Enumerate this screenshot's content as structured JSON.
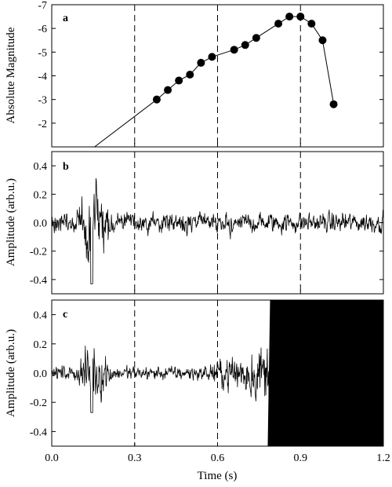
{
  "chart_data": [
    {
      "panel": "a",
      "type": "scatter",
      "ylabel": "Absolute Magnitude",
      "ylim": [
        -1,
        -7
      ],
      "y_inverted": true,
      "yticks": [
        "-2",
        "-3",
        "-4",
        "-5",
        "-6",
        "-7"
      ],
      "line_start": {
        "x": 0.155,
        "y": -1.0
      },
      "points": [
        {
          "x": 0.38,
          "y": -3.0
        },
        {
          "x": 0.42,
          "y": -3.4
        },
        {
          "x": 0.46,
          "y": -3.8
        },
        {
          "x": 0.5,
          "y": -4.05
        },
        {
          "x": 0.54,
          "y": -4.55
        },
        {
          "x": 0.58,
          "y": -4.8
        },
        {
          "x": 0.66,
          "y": -5.1
        },
        {
          "x": 0.7,
          "y": -5.3
        },
        {
          "x": 0.74,
          "y": -5.6
        },
        {
          "x": 0.82,
          "y": -6.2
        },
        {
          "x": 0.86,
          "y": -6.5
        },
        {
          "x": 0.9,
          "y": -6.5
        },
        {
          "x": 0.94,
          "y": -6.2
        },
        {
          "x": 0.98,
          "y": -5.5
        },
        {
          "x": 1.02,
          "y": -2.8
        }
      ]
    },
    {
      "panel": "b",
      "type": "line",
      "ylabel": "Amplitude (arb.u.)",
      "ylim": [
        -0.5,
        0.5
      ],
      "yticks": [
        "-0.4",
        "-0.2",
        "0.0",
        "0.2",
        "0.4"
      ],
      "waveform": {
        "background_amplitude": 0.09,
        "burst": {
          "start": 0.09,
          "end": 0.22,
          "peak_amplitude": 0.38,
          "min": -0.43
        }
      }
    },
    {
      "panel": "c",
      "type": "line",
      "ylabel": "Amplitude (arb.u.)",
      "ylim": [
        -0.5,
        0.5
      ],
      "yticks": [
        "-0.4",
        "-0.2",
        "0.0",
        "0.2",
        "0.4"
      ],
      "waveform": {
        "background_amplitude": 0.06,
        "burst": {
          "start": 0.09,
          "end": 0.22,
          "peak_amplitude": 0.25,
          "min": -0.27
        },
        "rising": {
          "start": 0.55,
          "end": 0.79,
          "peak_amplitude": 0.3
        },
        "saturated": {
          "start": 0.79,
          "end": 1.2
        }
      }
    }
  ],
  "x_axis": {
    "xlabel": "Time (s)",
    "xlim": [
      0.0,
      1.2
    ],
    "xticks": [
      "0.0",
      "0.3",
      "0.6",
      "0.9",
      "1.2"
    ]
  },
  "vertical_dashed_lines_x": [
    0.3,
    0.6,
    0.9
  ],
  "panel_letters": [
    "a",
    "b",
    "c"
  ]
}
